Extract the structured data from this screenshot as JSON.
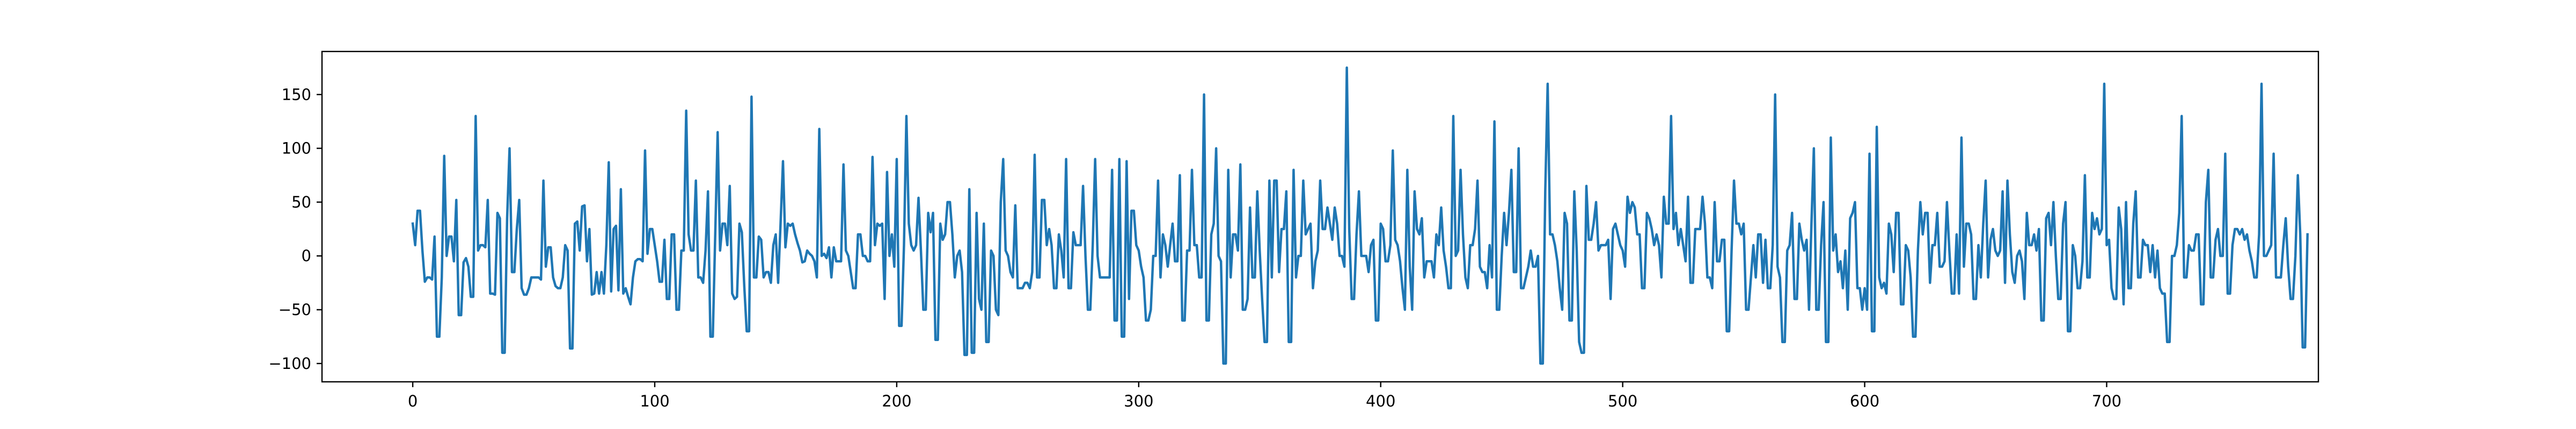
{
  "chart_data": {
    "type": "line",
    "title": "",
    "xlabel": "",
    "ylabel": "",
    "xlim": [
      -37.5,
      787.5
    ],
    "ylim": [
      -117,
      190
    ],
    "x_ticks": [
      0,
      100,
      200,
      300,
      400,
      500,
      600,
      700
    ],
    "y_ticks": [
      -100,
      -50,
      0,
      50,
      100,
      150
    ],
    "grid": false,
    "legend": "none",
    "line_color": "#1f77b4",
    "series": [
      {
        "x_start": 0,
        "x_step": 1,
        "values": [
          30,
          10,
          42,
          42,
          5,
          -24,
          -20,
          -20,
          -22,
          18,
          -75,
          -75,
          -20,
          93,
          0,
          18,
          18,
          -5,
          52,
          -55,
          -55,
          -6,
          -2,
          -10,
          -38,
          -38,
          130,
          5,
          10,
          10,
          8,
          52,
          -35,
          -35,
          -36,
          40,
          35,
          -90,
          -90,
          35,
          100,
          -15,
          -15,
          25,
          52,
          -30,
          -36,
          -36,
          -30,
          -20,
          -20,
          -20,
          -20,
          -22,
          70,
          -10,
          8,
          8,
          -20,
          -28,
          -30,
          -30,
          -20,
          10,
          5,
          -86,
          -86,
          30,
          32,
          5,
          46,
          47,
          -5,
          25,
          -36,
          -35,
          -15,
          -35,
          -15,
          -35,
          10,
          87,
          -33,
          25,
          28,
          -32,
          62,
          -35,
          -30,
          -38,
          -45,
          -20,
          -5,
          -3,
          -3,
          -5,
          98,
          2,
          25,
          25,
          10,
          -5,
          -24,
          -24,
          15,
          -40,
          -40,
          20,
          20,
          -50,
          -50,
          5,
          5,
          135,
          20,
          5,
          5,
          70,
          -20,
          -20,
          -25,
          5,
          60,
          -75,
          -75,
          20,
          115,
          5,
          30,
          30,
          10,
          65,
          -35,
          -40,
          -38,
          30,
          22,
          -28,
          -70,
          -70,
          148,
          -20,
          -20,
          18,
          15,
          -20,
          -15,
          -15,
          -25,
          10,
          20,
          -25,
          30,
          88,
          8,
          30,
          28,
          30,
          20,
          12,
          5,
          -6,
          -5,
          5,
          2,
          0,
          -5,
          -20,
          118,
          0,
          2,
          -2,
          8,
          -20,
          8,
          -5,
          -5,
          -5,
          85,
          5,
          0,
          -15,
          -30,
          -30,
          20,
          20,
          0,
          0,
          -5,
          -5,
          92,
          10,
          30,
          28,
          30,
          -40,
          78,
          0,
          20,
          -10,
          90,
          -65,
          -65,
          10,
          130,
          30,
          10,
          5,
          10,
          54,
          5,
          -50,
          -50,
          40,
          22,
          40,
          -78,
          -78,
          30,
          15,
          20,
          50,
          50,
          20,
          -20,
          0,
          5,
          -15,
          -92,
          -92,
          62,
          -90,
          -90,
          40,
          -40,
          -50,
          30,
          -80,
          -80,
          5,
          0,
          -50,
          -55,
          50,
          90,
          5,
          0,
          -15,
          -20,
          47,
          -30,
          -30,
          -30,
          -25,
          -25,
          -30,
          -15,
          94,
          -20,
          -20,
          52,
          52,
          10,
          25,
          10,
          -30,
          -30,
          20,
          5,
          -20,
          90,
          -30,
          -30,
          22,
          10,
          10,
          10,
          65,
          0,
          -50,
          -50,
          10,
          90,
          0,
          -20,
          -20,
          -20,
          -20,
          -20,
          80,
          -60,
          -60,
          90,
          -75,
          -75,
          88,
          -40,
          42,
          42,
          10,
          5,
          -10,
          -20,
          -60,
          -60,
          -50,
          0,
          0,
          70,
          -20,
          20,
          10,
          -10,
          10,
          30,
          -5,
          -5,
          75,
          -60,
          -60,
          5,
          5,
          80,
          10,
          10,
          -20,
          -20,
          150,
          -60,
          -60,
          20,
          30,
          100,
          0,
          -5,
          -100,
          -100,
          80,
          -20,
          20,
          20,
          5,
          85,
          -50,
          -50,
          -40,
          45,
          -20,
          -20,
          60,
          5,
          -40,
          -80,
          -80,
          70,
          -20,
          70,
          70,
          -15,
          25,
          25,
          60,
          -80,
          -80,
          80,
          -20,
          0,
          0,
          70,
          20,
          25,
          30,
          -30,
          -5,
          5,
          70,
          25,
          25,
          45,
          30,
          15,
          45,
          30,
          0,
          0,
          -10,
          175,
          25,
          -40,
          -40,
          20,
          60,
          0,
          0,
          0,
          -15,
          10,
          15,
          -60,
          -60,
          30,
          25,
          -5,
          -5,
          10,
          98,
          15,
          10,
          -5,
          -30,
          -50,
          80,
          -10,
          -50,
          60,
          25,
          20,
          35,
          -20,
          -5,
          -5,
          -5,
          -20,
          20,
          10,
          45,
          5,
          -10,
          -30,
          -30,
          130,
          0,
          5,
          80,
          20,
          -20,
          -30,
          10,
          10,
          25,
          70,
          -10,
          -15,
          -15,
          -30,
          10,
          -20,
          125,
          -50,
          -50,
          0,
          40,
          10,
          40,
          80,
          -15,
          -15,
          100,
          -30,
          -30,
          -20,
          -10,
          5,
          -10,
          -10,
          0,
          -100,
          -100,
          60,
          160,
          20,
          20,
          10,
          -5,
          -30,
          -50,
          40,
          30,
          -60,
          -60,
          60,
          5,
          -80,
          -90,
          -90,
          65,
          15,
          15,
          30,
          50,
          5,
          10,
          10,
          10,
          15,
          -40,
          25,
          30,
          20,
          10,
          5,
          -10,
          55,
          40,
          50,
          45,
          20,
          20,
          -30,
          -30,
          40,
          35,
          25,
          10,
          20,
          10,
          -20,
          55,
          30,
          30,
          130,
          25,
          40,
          10,
          25,
          10,
          -5,
          55,
          -25,
          -25,
          25,
          25,
          25,
          55,
          30,
          -20,
          -20,
          -30,
          50,
          -5,
          -5,
          15,
          15,
          -70,
          -70,
          5,
          70,
          30,
          30,
          20,
          30,
          -50,
          -50,
          -20,
          10,
          -20,
          20,
          20,
          -25,
          15,
          -30,
          -30,
          10,
          150,
          -10,
          -20,
          -80,
          -80,
          5,
          10,
          40,
          -40,
          -40,
          30,
          15,
          5,
          15,
          -50,
          30,
          100,
          -50,
          -50,
          10,
          50,
          -80,
          -80,
          110,
          5,
          20,
          -15,
          -5,
          -30,
          5,
          -50,
          35,
          40,
          50,
          -30,
          -30,
          -50,
          -30,
          -50,
          95,
          -70,
          -70,
          120,
          -20,
          -30,
          -25,
          -35,
          30,
          20,
          -15,
          40,
          40,
          -45,
          -45,
          10,
          5,
          -20,
          -75,
          -75,
          5,
          50,
          20,
          40,
          40,
          -25,
          10,
          10,
          40,
          -10,
          -10,
          -5,
          50,
          5,
          -35,
          -35,
          20,
          -35,
          110,
          -10,
          30,
          30,
          20,
          -40,
          -40,
          10,
          -20,
          30,
          70,
          -20,
          15,
          25,
          5,
          0,
          5,
          60,
          -25,
          70,
          20,
          -15,
          -25,
          0,
          5,
          -5,
          -40,
          40,
          10,
          10,
          20,
          5,
          25,
          -60,
          -60,
          35,
          40,
          10,
          50,
          0,
          -40,
          -40,
          30,
          50,
          -70,
          -70,
          10,
          0,
          -30,
          -30,
          -5,
          75,
          -20,
          -20,
          40,
          25,
          35,
          20,
          25,
          160,
          10,
          15,
          -30,
          -40,
          -40,
          45,
          25,
          -45,
          50,
          -30,
          -30,
          30,
          60,
          -20,
          -20,
          15,
          10,
          10,
          -15,
          10,
          -20,
          5,
          -30,
          -35,
          -35,
          -80,
          -80,
          0,
          0,
          10,
          40,
          130,
          -20,
          -20,
          10,
          5,
          5,
          20,
          20,
          -45,
          -45,
          50,
          80,
          -20,
          -20,
          15,
          25,
          0,
          0,
          95,
          -35,
          -35,
          10,
          25,
          25,
          20,
          25,
          15,
          20,
          5,
          -5,
          -20,
          -20,
          20,
          160,
          0,
          0,
          5,
          10,
          95,
          -20,
          -20,
          -20,
          10,
          35,
          -10,
          -40,
          -40,
          0,
          75,
          20,
          -85,
          -85,
          20
        ]
      }
    ]
  }
}
